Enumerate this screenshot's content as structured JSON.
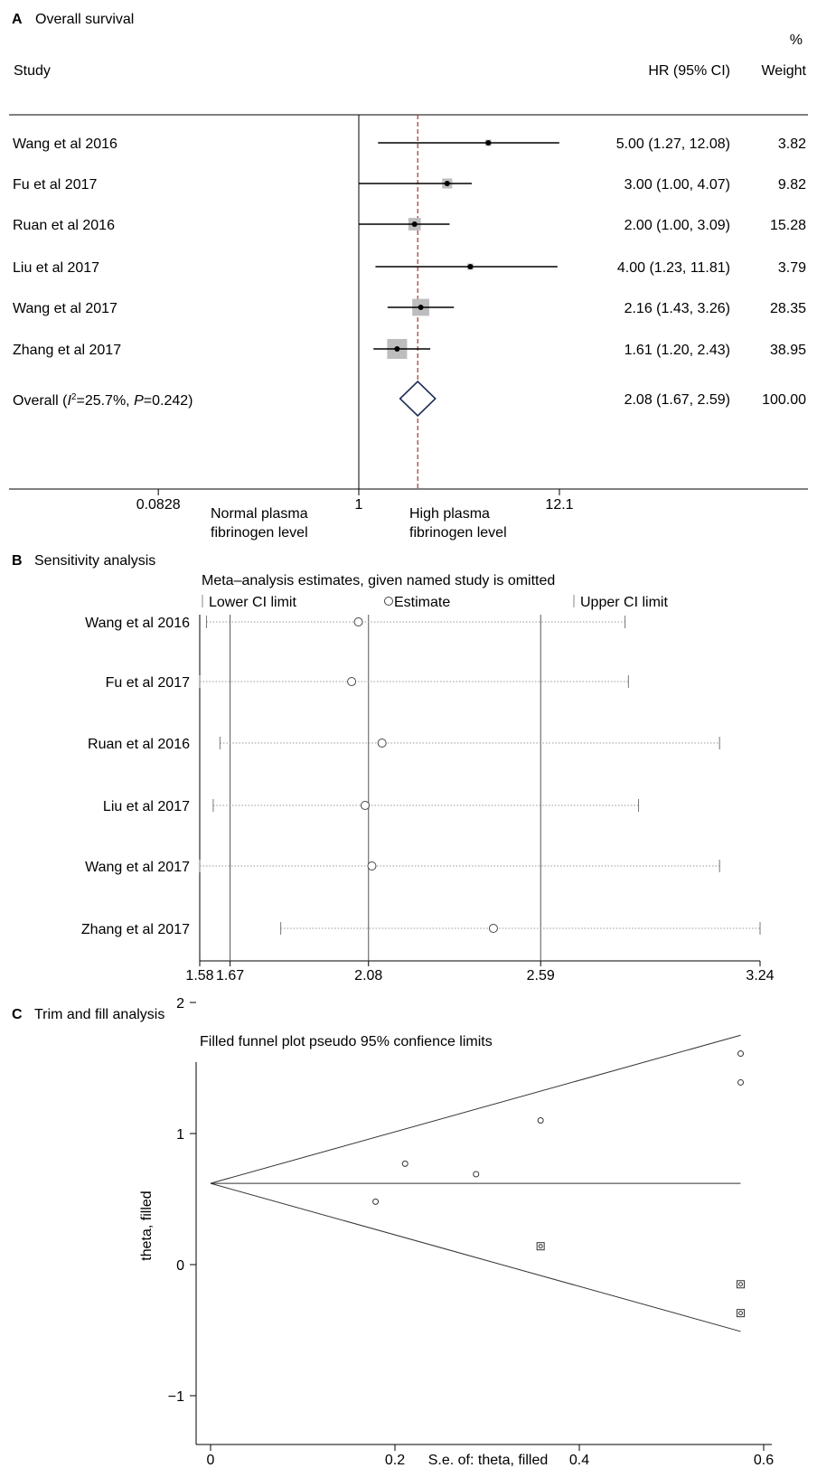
{
  "panelA": {
    "letter": "A",
    "title": "Overall survival",
    "col_study": "Study",
    "col_hr": "HR (95% CI)",
    "col_weight_pct": "%",
    "col_weight": "Weight",
    "overall_label_pre": "Overall (",
    "overall_label_i": "I",
    "overall_label_sup": "2",
    "overall_label_mid": "=25.7%, ",
    "overall_label_p": "P",
    "overall_label_post": "=0.242)",
    "left_label_1": "Normal plasma",
    "left_label_2": "fibrinogen level",
    "right_label_1": "High plasma",
    "right_label_2": "fibrinogen level"
  },
  "panelB": {
    "letter": "B",
    "title": "Sensitivity analysis",
    "subtitle": "Meta–analysis estimates, given named study is omitted",
    "legend_lower": "Lower CI limit",
    "legend_estimate": "Estimate",
    "legend_upper": "Upper CI limit"
  },
  "panelC": {
    "letter": "C",
    "title": "Trim and fill analysis",
    "subtitle": "Filled funnel plot pseudo 95% confience limits"
  },
  "chart_data": [
    {
      "type": "forest",
      "x_scale": "log",
      "xlim": [
        0.0828,
        12.1
      ],
      "xticks": [
        0.0828,
        1,
        12.1
      ],
      "xtick_labels": [
        "0.0828",
        "1",
        "12.1"
      ],
      "null_line": 1,
      "pooled_line": 2.08,
      "studies": [
        {
          "name": "Wang et al 2016",
          "hr": 5.0,
          "lo": 1.27,
          "hi": 12.08,
          "hr_text": "5.00 (1.27, 12.08)",
          "weight": "3.82"
        },
        {
          "name": "Fu et al 2017",
          "hr": 3.0,
          "lo": 1.0,
          "hi": 4.07,
          "hr_text": "3.00 (1.00, 4.07)",
          "weight": "9.82"
        },
        {
          "name": "Ruan et al 2016",
          "hr": 2.0,
          "lo": 1.0,
          "hi": 3.09,
          "hr_text": "2.00 (1.00, 3.09)",
          "weight": "15.28"
        },
        {
          "name": "Liu et al 2017",
          "hr": 4.0,
          "lo": 1.23,
          "hi": 11.81,
          "hr_text": "4.00 (1.23, 11.81)",
          "weight": "3.79"
        },
        {
          "name": "Wang et al 2017",
          "hr": 2.16,
          "lo": 1.43,
          "hi": 3.26,
          "hr_text": "2.16 (1.43, 3.26)",
          "weight": "28.35"
        },
        {
          "name": "Zhang et al 2017",
          "hr": 1.61,
          "lo": 1.2,
          "hi": 2.43,
          "hr_text": "1.61 (1.20, 2.43)",
          "weight": "38.95"
        }
      ],
      "overall": {
        "hr": 2.08,
        "lo": 1.67,
        "hi": 2.59,
        "hr_text": "2.08 (1.67, 2.59)",
        "weight": "100.00"
      },
      "colors": {
        "box": "#bdbdbd",
        "diamond": "#1f2d5a",
        "pooled_line": "#a0362e"
      }
    },
    {
      "type": "sensitivity",
      "xlim": [
        1.58,
        3.24
      ],
      "xticks": [
        1.58,
        1.67,
        2.08,
        2.59,
        3.24
      ],
      "xtick_labels": [
        "1.58",
        "1.67",
        "2.08",
        "2.59",
        "3.24"
      ],
      "reference_lines": [
        1.67,
        2.08,
        2.59
      ],
      "rows": [
        {
          "name": "Wang et al 2016",
          "lo": 1.6,
          "est": 2.05,
          "hi": 2.84
        },
        {
          "name": "Fu et al 2017",
          "lo": 1.58,
          "est": 2.03,
          "hi": 2.85
        },
        {
          "name": "Ruan et al 2016",
          "lo": 1.64,
          "est": 2.12,
          "hi": 3.12
        },
        {
          "name": "Liu et al 2017",
          "lo": 1.62,
          "est": 2.07,
          "hi": 2.88
        },
        {
          "name": "Wang et al 2017",
          "lo": 1.58,
          "est": 2.09,
          "hi": 3.12
        },
        {
          "name": "Zhang et al 2017",
          "lo": 1.82,
          "est": 2.45,
          "hi": 3.24
        }
      ]
    },
    {
      "type": "scatter",
      "xlabel": "S.e. of: theta, filled",
      "ylabel": "theta, filled",
      "xlim": [
        0,
        0.6
      ],
      "ylim": [
        -1,
        2
      ],
      "xticks": [
        0,
        0.2,
        0.4,
        0.6
      ],
      "xtick_labels": [
        "0",
        "0.2",
        "0.4",
        "0.6"
      ],
      "yticks": [
        -1,
        0,
        1,
        2
      ],
      "ytick_labels": [
        "−1",
        "0",
        "1",
        "2"
      ],
      "pooled_theta": 0.62,
      "funnel_apex": [
        0,
        0.62
      ],
      "funnel_end_se": 0.575,
      "funnel_upper_end": 1.75,
      "funnel_lower_end": -0.51,
      "observed": [
        {
          "se": 0.179,
          "theta": 0.48
        },
        {
          "se": 0.211,
          "theta": 0.77
        },
        {
          "se": 0.288,
          "theta": 0.69
        },
        {
          "se": 0.358,
          "theta": 1.1
        },
        {
          "se": 0.575,
          "theta": 1.61
        },
        {
          "se": 0.575,
          "theta": 1.39
        }
      ],
      "filled": [
        {
          "se": 0.358,
          "theta": 0.14
        },
        {
          "se": 0.575,
          "theta": -0.15
        },
        {
          "se": 0.575,
          "theta": -0.37
        }
      ]
    }
  ]
}
